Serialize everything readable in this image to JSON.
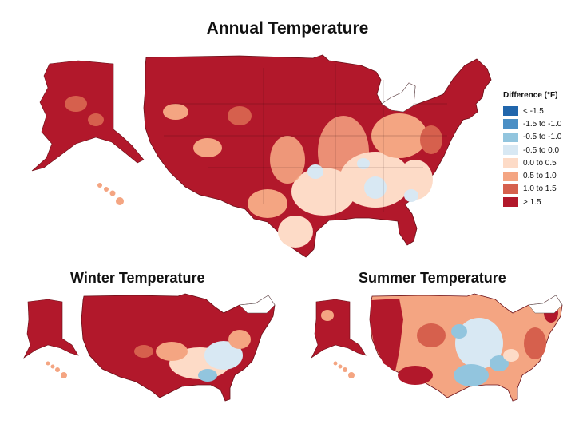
{
  "titles": {
    "main": "Annual Temperature",
    "winter": "Winter Temperature",
    "summer": "Summer Temperature"
  },
  "legend": {
    "title": "Difference (°F)",
    "items": [
      {
        "label": "< -1.5",
        "color": "#2166ac"
      },
      {
        "label": "-1.5 to -1.0",
        "color": "#4b8fc5"
      },
      {
        "label": "-0.5 to -1.0",
        "color": "#92c5de"
      },
      {
        "label": "-0.5 to 0.0",
        "color": "#d8e8f3"
      },
      {
        "label": "0.0 to 0.5",
        "color": "#fddbc7"
      },
      {
        "label": "0.5 to 1.0",
        "color": "#f4a582"
      },
      {
        "label": "1.0 to 1.5",
        "color": "#d6604d"
      },
      {
        "label": "> 1.5",
        "color": "#b2182b"
      }
    ]
  },
  "maps": [
    {
      "name": "annual",
      "dominant": "> 1.5",
      "southeast": "0.0 to 0.5"
    },
    {
      "name": "winter",
      "dominant": "> 1.5",
      "southeast": "-0.5 to 0.0"
    },
    {
      "name": "summer",
      "dominant": "0.5 to 1.0",
      "central": "-0.5 to -1.0"
    }
  ]
}
